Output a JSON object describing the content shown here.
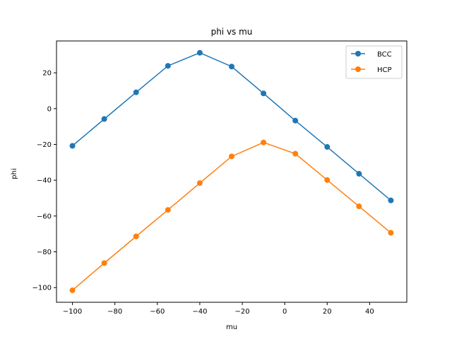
{
  "chart_data": {
    "type": "line",
    "title": "phi vs mu",
    "xlabel": "mu",
    "ylabel": "phi",
    "xlim": [
      -107.5,
      57.5
    ],
    "ylim": [
      -108.2,
      37.8
    ],
    "xticks": [
      -100,
      -80,
      -60,
      -40,
      -20,
      0,
      20,
      40
    ],
    "xtick_labels": [
      "−100",
      "−80",
      "−60",
      "−40",
      "−20",
      "0",
      "20",
      "40"
    ],
    "yticks": [
      -100,
      -80,
      -60,
      -40,
      -20,
      0,
      20
    ],
    "ytick_labels": [
      "−100",
      "−80",
      "−60",
      "−40",
      "−20",
      "0",
      "20"
    ],
    "grid": false,
    "legend_position": "upper right",
    "x": [
      -100,
      -85,
      -70,
      -55,
      -40,
      -25,
      -10,
      5,
      20,
      35,
      50
    ],
    "series": [
      {
        "name": "BCC",
        "color": "#1f77b4",
        "values": [
          -20.8,
          -5.8,
          9.1,
          23.9,
          31.2,
          23.5,
          8.5,
          -6.7,
          -21.4,
          -36.4,
          -51.3
        ]
      },
      {
        "name": "HCP",
        "color": "#ff7f0e",
        "values": [
          -101.5,
          -86.3,
          -71.4,
          -56.6,
          -41.6,
          -26.7,
          -18.9,
          -25.2,
          -39.9,
          -54.6,
          -69.4
        ]
      }
    ]
  }
}
